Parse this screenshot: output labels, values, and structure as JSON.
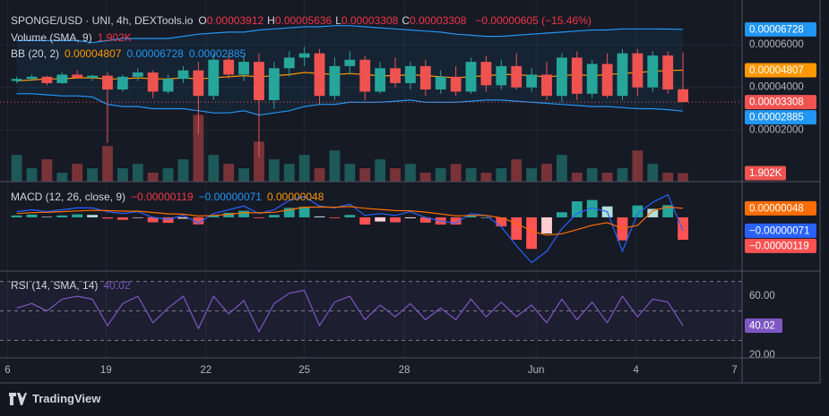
{
  "header": {
    "symbol": "SPONGE/USD · UNI, 4h, DEXTools.io",
    "ohlc": [
      {
        "key": "O",
        "value": 3.912e-05,
        "label": "0.00003912"
      },
      {
        "key": "H",
        "value": 5.636e-05,
        "label": "0.00005636"
      },
      {
        "key": "L",
        "value": 3.308e-05,
        "label": "0.00003308"
      },
      {
        "key": "C",
        "value": 3.308e-05,
        "label": "0.00003308"
      }
    ],
    "change": {
      "value": -6.05e-06,
      "label": "−0.00000605 (−15.46%)"
    }
  },
  "footer": {
    "brand": "TradingView"
  },
  "chart_data": [
    {
      "type": "candlestick",
      "ylim": [
        -4.3e-06,
        7.94e-05
      ],
      "yticks": [
        {
          "value": 2e-05,
          "label": "0.00002000"
        },
        {
          "value": 4e-05,
          "label": "0.00004000"
        },
        {
          "value": 6e-05,
          "label": "0.00006000"
        }
      ],
      "xlim": [
        -1.1,
        47.9
      ],
      "xticks": [
        {
          "value": -0.6,
          "label": "6"
        },
        {
          "value": 5.9,
          "label": "19"
        },
        {
          "value": 12.5,
          "label": "22"
        },
        {
          "value": 19.0,
          "label": "25"
        },
        {
          "value": 25.6,
          "label": "28"
        },
        {
          "value": 34.3,
          "label": "Jun"
        },
        {
          "value": 40.9,
          "label": "4"
        },
        {
          "value": 47.4,
          "label": "7"
        }
      ],
      "grid": true,
      "colors": {
        "up": "#26a69a",
        "down": "#ef5350"
      },
      "candles": [
        [
          4.3e-05,
          4.5e-05,
          4.2e-05,
          4.4e-05
        ],
        [
          4.4e-05,
          4.6e-05,
          4.3e-05,
          4.5e-05
        ],
        [
          4.5e-05,
          4.55e-05,
          4.1e-05,
          4.2e-05
        ],
        [
          4.2e-05,
          4.7e-05,
          4.15e-05,
          4.6e-05
        ],
        [
          4.6e-05,
          4.8e-05,
          4.4e-05,
          4.45e-05
        ],
        [
          4.45e-05,
          4.6e-05,
          4.3e-05,
          4.55e-05
        ],
        [
          4.55e-05,
          4.7e-05,
          1.4e-05,
          3.9e-05
        ],
        [
          3.9e-05,
          4.6e-05,
          3.8e-05,
          4.5e-05
        ],
        [
          4.5e-05,
          4.9e-05,
          4.3e-05,
          4.7e-05
        ],
        [
          4.7e-05,
          4.8e-05,
          3.5e-05,
          3.8e-05
        ],
        [
          3.8e-05,
          4.6e-05,
          3.7e-05,
          4.4e-05
        ],
        [
          4.4e-05,
          5e-05,
          4.2e-05,
          4.8e-05
        ],
        [
          4.8e-05,
          5.2e-05,
          1.8e-05,
          3.6e-05
        ],
        [
          3.6e-05,
          5.6e-05,
          3.4e-05,
          5.3e-05
        ],
        [
          5.3e-05,
          5.6e-05,
          4.4e-05,
          4.6e-05
        ],
        [
          4.6e-05,
          5.5e-05,
          4.3e-05,
          5.2e-05
        ],
        [
          5.2e-05,
          5.6e-05,
          7e-06,
          3.4e-05
        ],
        [
          3.4e-05,
          5.2e-05,
          3e-05,
          4.9e-05
        ],
        [
          4.9e-05,
          5.7e-05,
          4.5e-05,
          5.4e-05
        ],
        [
          5.4e-05,
          5.9e-05,
          5e-05,
          5.6e-05
        ],
        [
          5.6e-05,
          5.8e-05,
          3.2e-05,
          3.6e-05
        ],
        [
          3.6e-05,
          5.4e-05,
          3.4e-05,
          5e-05
        ],
        [
          5e-05,
          5.7e-05,
          4.6e-05,
          5.3e-05
        ],
        [
          5.3e-05,
          5.5e-05,
          3.4e-05,
          3.8e-05
        ],
        [
          3.8e-05,
          5.2e-05,
          3.7e-05,
          4.9e-05
        ],
        [
          4.9e-05,
          5.4e-05,
          4e-05,
          4.2e-05
        ],
        [
          4.2e-05,
          5.2e-05,
          3.9e-05,
          5e-05
        ],
        [
          5e-05,
          5.3e-05,
          3.6e-05,
          3.9e-05
        ],
        [
          3.9e-05,
          4.8e-05,
          3.7e-05,
          4.5e-05
        ],
        [
          4.5e-05,
          5e-05,
          3.6e-05,
          3.8e-05
        ],
        [
          3.8e-05,
          5.4e-05,
          3.7e-05,
          5.2e-05
        ],
        [
          5.2e-05,
          5.5e-05,
          3.8e-05,
          4.1e-05
        ],
        [
          4.1e-05,
          5.3e-05,
          3.9e-05,
          5e-05
        ],
        [
          5e-05,
          5.6e-05,
          3.9e-05,
          4e-05
        ],
        [
          4e-05,
          4.9e-05,
          3.8e-05,
          4.6e-05
        ],
        [
          4.6e-05,
          5.2e-05,
          3.4e-05,
          3.6e-05
        ],
        [
          3.6e-05,
          5.6e-05,
          3.3e-05,
          5.4e-05
        ],
        [
          5.4e-05,
          5.7e-05,
          3.4e-05,
          3.7e-05
        ],
        [
          3.7e-05,
          5.3e-05,
          3.5e-05,
          5.1e-05
        ],
        [
          5.1e-05,
          5.6e-05,
          3.5e-05,
          3.6e-05
        ],
        [
          3.6e-05,
          5.8e-05,
          3.4e-05,
          5.6e-05
        ],
        [
          5.6e-05,
          5.8e-05,
          3.6e-05,
          4e-05
        ],
        [
          4e-05,
          5.7e-05,
          3.8e-05,
          5.5e-05
        ],
        [
          5.5e-05,
          5.7e-05,
          3.7e-05,
          3.9e-05
        ],
        [
          3.912e-05,
          5.636e-05,
          3.308e-05,
          3.308e-05
        ]
      ],
      "volume": {
        "label": "Volume (SMA, 9)",
        "vlim": [
          0,
          40
        ],
        "legend": {
          "value": 1.902,
          "label": "1.902K"
        },
        "values": [
          6,
          3,
          5,
          2,
          4,
          3,
          8,
          3,
          4,
          2,
          3,
          5,
          15,
          6,
          4,
          3,
          9,
          5,
          4,
          6,
          3,
          7,
          4,
          3,
          5,
          3,
          4,
          2,
          3,
          4,
          3,
          2,
          3,
          5,
          3,
          4,
          6,
          2,
          3,
          2,
          3,
          7,
          4,
          2,
          1.902
        ]
      },
      "bb": {
        "label": "BB (20, 2)",
        "colors": {
          "basis": "#ff9800",
          "band": "#2196f3"
        },
        "legend": [
          {
            "value": 4.807e-05,
            "label": "0.00004807"
          },
          {
            "value": 6.728e-05,
            "label": "0.00006728"
          },
          {
            "value": 2.885e-05,
            "label": "0.00002885"
          }
        ],
        "upper": [
          6.2e-05,
          6.2e-05,
          6.2e-05,
          6.2e-05,
          6.2e-05,
          6.1e-05,
          6.2e-05,
          6.3e-05,
          6.3e-05,
          6.3e-05,
          6.3e-05,
          6.4e-05,
          6.5e-05,
          6.55e-05,
          6.6e-05,
          6.6e-05,
          6.7e-05,
          6.75e-05,
          6.8e-05,
          6.85e-05,
          6.85e-05,
          6.9e-05,
          6.9e-05,
          6.85e-05,
          6.8e-05,
          6.75e-05,
          6.7e-05,
          6.65e-05,
          6.6e-05,
          6.5e-05,
          6.45e-05,
          6.4e-05,
          6.4e-05,
          6.45e-05,
          6.5e-05,
          6.55e-05,
          6.6e-05,
          6.65e-05,
          6.7e-05,
          6.7e-05,
          6.75e-05,
          6.75e-05,
          6.75e-05,
          6.74e-05,
          6.728e-05
        ],
        "basis": [
          4.3e-05,
          4.35e-05,
          4.4e-05,
          4.4e-05,
          4.45e-05,
          4.45e-05,
          4.4e-05,
          4.4e-05,
          4.45e-05,
          4.4e-05,
          4.4e-05,
          4.45e-05,
          4.4e-05,
          4.45e-05,
          4.5e-05,
          4.55e-05,
          4.5e-05,
          4.55e-05,
          4.6e-05,
          4.7e-05,
          4.65e-05,
          4.6e-05,
          4.65e-05,
          4.6e-05,
          4.55e-05,
          4.55e-05,
          4.6e-05,
          4.55e-05,
          4.5e-05,
          4.45e-05,
          4.5e-05,
          4.55e-05,
          4.6e-05,
          4.6e-05,
          4.55e-05,
          4.5e-05,
          4.55e-05,
          4.6e-05,
          4.55e-05,
          4.6e-05,
          4.65e-05,
          4.7e-05,
          4.75e-05,
          4.8e-05,
          4.807e-05
        ],
        "lower": [
          3.7e-05,
          3.7e-05,
          3.65e-05,
          3.6e-05,
          3.6e-05,
          3.55e-05,
          3.2e-05,
          3.1e-05,
          3.1e-05,
          3e-05,
          3e-05,
          3e-05,
          2.9e-05,
          2.8e-05,
          2.8e-05,
          2.9e-05,
          2.7e-05,
          2.8e-05,
          2.9e-05,
          3.1e-05,
          3.2e-05,
          3.2e-05,
          3.3e-05,
          3.3e-05,
          3.3e-05,
          3.35e-05,
          3.4e-05,
          3.3e-05,
          3.3e-05,
          3.3e-05,
          3.35e-05,
          3.4e-05,
          3.4e-05,
          3.35e-05,
          3.3e-05,
          3.25e-05,
          3.2e-05,
          3.15e-05,
          3.1e-05,
          3.1e-05,
          3.05e-05,
          3e-05,
          3e-05,
          2.95e-05,
          2.885e-05
        ]
      }
    },
    {
      "type": "macd",
      "title": "MACD (12, 26, close, 9)",
      "ylim": [
        -2.8e-06,
        1.8e-06
      ],
      "colors": {
        "macd": "#2962ff",
        "signal": "#ff6d00",
        "up": "#26a69a",
        "up_fading": "#b2dfdb",
        "down": "#ff5252",
        "down_fading": "#ffcdd2"
      },
      "legend": [
        {
          "value": -1.19e-06,
          "label": "−0.00000119"
        },
        {
          "value": -7.1e-07,
          "label": "−0.00000071"
        },
        {
          "value": 4.8e-07,
          "label": "0.00000048"
        }
      ],
      "histogram": [
        1e-07,
        1.5e-07,
        3e-08,
        1e-07,
        1.6e-07,
        1.3e-07,
        -6e-08,
        -1.3e-07,
        -3e-08,
        -2.6e-07,
        -2.9e-07,
        -7e-08,
        -3.7e-07,
        1e-07,
        2.4e-07,
        3.5e-07,
        -4e-08,
        1.3e-07,
        5e-07,
        5.6e-07,
        5e-08,
        -4e-08,
        1.3e-07,
        -3.8e-07,
        -2.2e-07,
        -2.6e-07,
        -5e-08,
        -2.8e-07,
        -3.8e-07,
        -3.8e-07,
        1e-07,
        0,
        -4.8e-07,
        -1.19e-06,
        -1.67e-06,
        -8.6e-07,
        2.7e-07,
        8.5e-07,
        9.2e-07,
        5.8e-07,
        -1.22e-06,
        6.3e-07,
        4.5e-07,
        6.5e-07,
        -1.19e-06
      ],
      "macd": [
        3e-07,
        4e-07,
        3e-07,
        4e-07,
        5e-07,
        5e-07,
        3e-07,
        2e-07,
        3e-07,
        0,
        -1e-07,
        1e-07,
        -3e-07,
        2e-07,
        4e-07,
        6e-07,
        2e-07,
        4e-07,
        9e-07,
        1.1e-06,
        6e-07,
        5e-07,
        7e-07,
        1e-07,
        2e-07,
        1e-07,
        3e-07,
        0,
        -2e-07,
        -3e-07,
        2e-07,
        1e-07,
        -5e-07,
        -1.5e-06,
        -2.4e-06,
        -1.8e-06,
        -6e-07,
        2e-07,
        5e-07,
        3e-07,
        -1.8e-06,
        2e-07,
        8e-07,
        1.2e-06,
        -7.1e-07
      ],
      "signal": [
        2e-07,
        2.5e-07,
        2.7e-07,
        3e-07,
        3.4e-07,
        3.7e-07,
        3.6e-07,
        3.3e-07,
        3.3e-07,
        2.6e-07,
        1.9e-07,
        1.7e-07,
        7e-08,
        1e-07,
        1.6e-07,
        2.5e-07,
        2.4e-07,
        2.7e-07,
        4e-07,
        5.4e-07,
        5.5e-07,
        5.4e-07,
        5.7e-07,
        4.8e-07,
        4.2e-07,
        3.6e-07,
        3.5e-07,
        2.8e-07,
        1.8e-07,
        8e-08,
        1e-07,
        1e-07,
        -2e-08,
        -3.1e-07,
        -7.3e-07,
        -9.4e-07,
        -8.7e-07,
        -6.5e-07,
        -4.2e-07,
        -2.8e-07,
        -5.8e-07,
        -4.3e-07,
        3.5e-07,
        5.5e-07,
        4.8e-07
      ]
    },
    {
      "type": "rsi",
      "title": "RSI (14, SMA, 14)",
      "ylim": [
        18.2,
        75.8
      ],
      "yticks": [
        {
          "value": 60,
          "label": "60.00"
        },
        {
          "value": 20,
          "label": "20.00"
        }
      ],
      "levels": [
        70,
        50,
        30
      ],
      "color": "#7e57c2",
      "values": [
        52,
        55,
        50,
        58,
        60,
        58,
        40,
        55,
        60,
        42,
        52,
        60,
        38,
        60,
        48,
        57,
        36,
        55,
        62,
        64,
        40,
        56,
        60,
        44,
        54,
        46,
        55,
        44,
        52,
        44,
        58,
        46,
        56,
        46,
        54,
        42,
        58,
        44,
        56,
        42,
        60,
        46,
        58,
        56,
        40.02
      ]
    }
  ]
}
